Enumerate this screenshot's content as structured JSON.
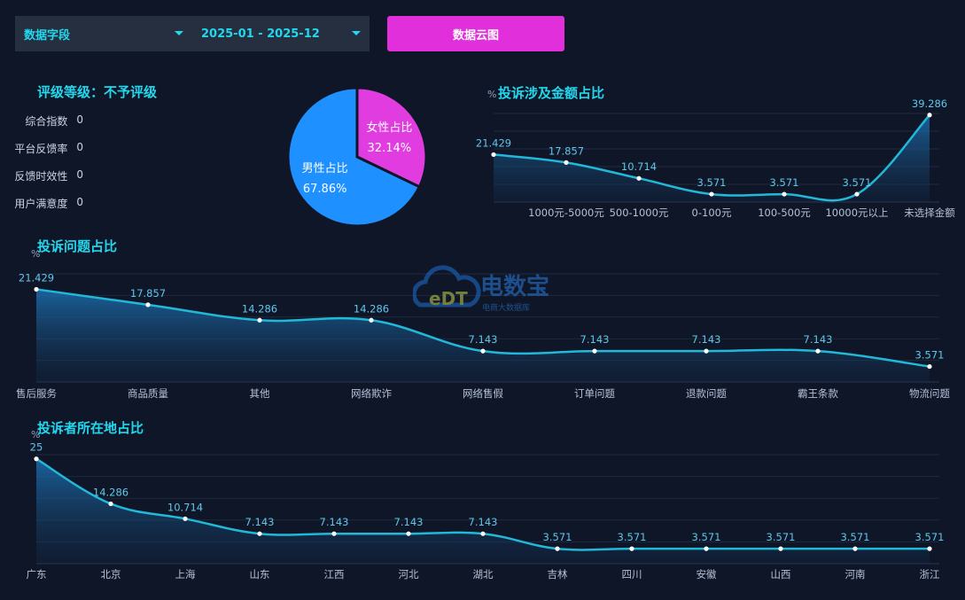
{
  "filters": {
    "field_label": "数据字段",
    "date_range": "2025-01 - 2025-12",
    "cloud_button": "数据云图"
  },
  "rating": {
    "title": "评级等级：不予评级",
    "metrics": [
      {
        "label": "综合指数",
        "value": "0"
      },
      {
        "label": "平台反馈率",
        "value": "0"
      },
      {
        "label": "反馈时效性",
        "value": "0"
      },
      {
        "label": "用户满意度",
        "value": "0"
      }
    ]
  },
  "watermark": {
    "brand": "电数宝",
    "sub": "电商大数据库",
    "logo": "eDT"
  },
  "colors": {
    "line": "#22b8d8",
    "male": "#1e90ff",
    "female": "#e03ce0",
    "title": "#22d8ee"
  },
  "chart_data": [
    {
      "id": "gender",
      "type": "pie",
      "slices": [
        {
          "name": "女性占比",
          "value": 32.14,
          "label": "32.14%",
          "color": "#e03ce0"
        },
        {
          "name": "男性占比",
          "value": 67.86,
          "label": "67.86%",
          "color": "#1e90ff"
        }
      ]
    },
    {
      "id": "amount",
      "type": "area",
      "title": "投诉涉及金额占比",
      "ylabel": "%",
      "categories": [
        "",
        "1000元-5000元",
        "500-1000元",
        "0-100元",
        "100-500元",
        "10000元以上",
        "未选择金额"
      ],
      "values": [
        21.429,
        17.857,
        10.714,
        3.571,
        3.571,
        3.571,
        39.286
      ],
      "value_labels": [
        "21.429",
        "17.857",
        "10.714",
        "3.571",
        "3.571",
        "3.571",
        "39.286"
      ],
      "ylim": [
        0,
        40
      ]
    },
    {
      "id": "issue",
      "type": "area",
      "title": "投诉问题占比",
      "ylabel": "%",
      "categories": [
        "售后服务",
        "商品质量",
        "其他",
        "网络欺诈",
        "网络售假",
        "订单问题",
        "退款问题",
        "霸王条款",
        "物流问题"
      ],
      "values": [
        21.429,
        17.857,
        14.286,
        14.286,
        7.143,
        7.143,
        7.143,
        7.143,
        3.571
      ],
      "value_labels": [
        "21.429",
        "17.857",
        "14.286",
        "14.286",
        "7.143",
        "7.143",
        "7.143",
        "7.143",
        "3.571"
      ],
      "ylim": [
        0,
        25
      ]
    },
    {
      "id": "region",
      "type": "area",
      "title": "投诉者所在地占比",
      "ylabel": "%",
      "categories": [
        "广东",
        "北京",
        "上海",
        "山东",
        "江西",
        "河北",
        "湖北",
        "吉林",
        "四川",
        "安徽",
        "山西",
        "河南",
        "浙江"
      ],
      "values": [
        25,
        14.286,
        10.714,
        7.143,
        7.143,
        7.143,
        7.143,
        3.571,
        3.571,
        3.571,
        3.571,
        3.571,
        3.571
      ],
      "value_labels": [
        "25",
        "14.286",
        "10.714",
        "7.143",
        "7.143",
        "7.143",
        "7.143",
        "3.571",
        "3.571",
        "3.571",
        "3.571",
        "3.571",
        "3.571"
      ],
      "ylim": [
        0,
        26
      ]
    }
  ]
}
